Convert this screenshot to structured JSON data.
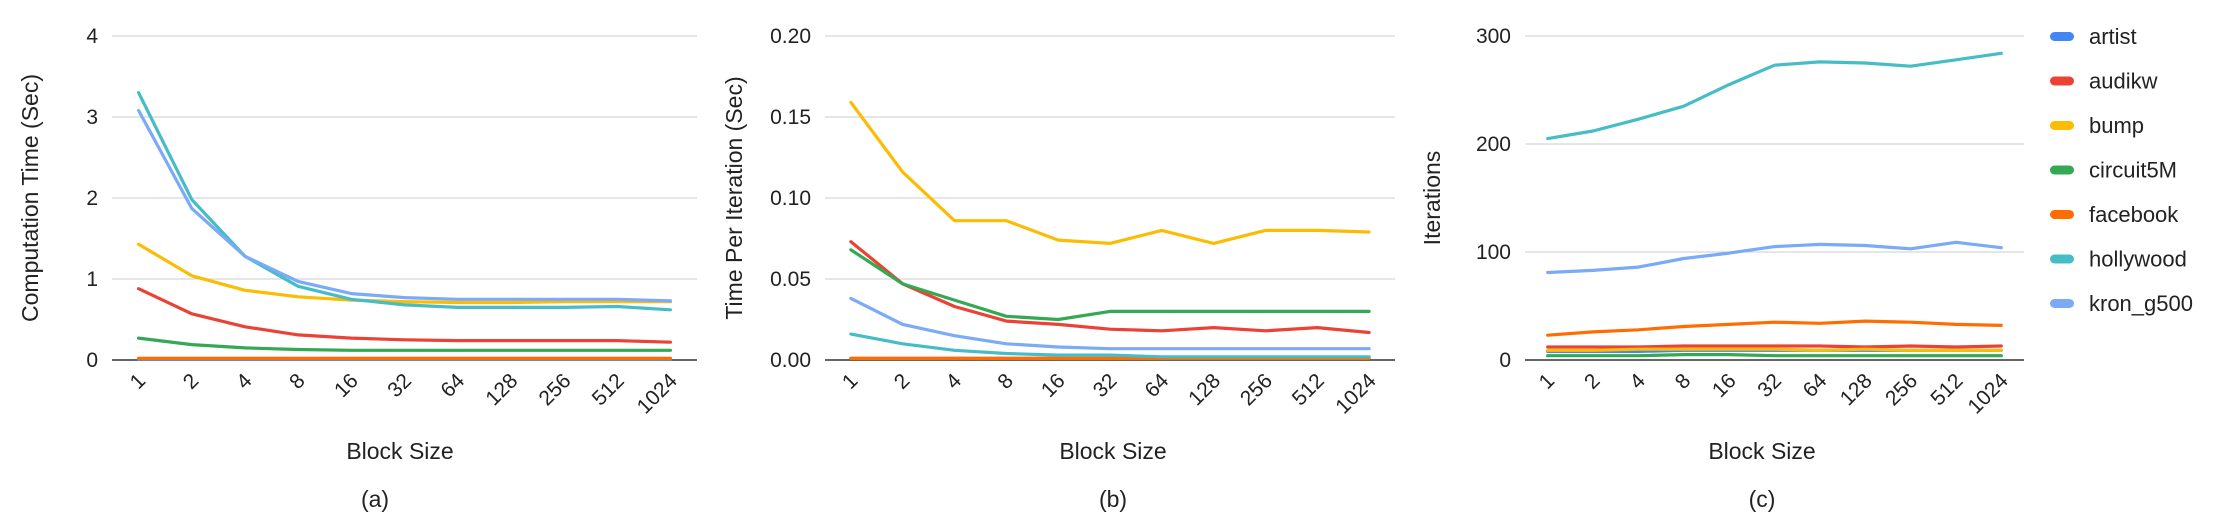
{
  "series_styles": [
    {
      "name": "artist",
      "color": "#4285f4"
    },
    {
      "name": "audikw",
      "color": "#ea4335"
    },
    {
      "name": "bump",
      "color": "#fbbc04"
    },
    {
      "name": "circuit5M",
      "color": "#34a853"
    },
    {
      "name": "facebook",
      "color": "#ff6d01"
    },
    {
      "name": "hollywood",
      "color": "#46bdc6"
    },
    {
      "name": "kron_g500",
      "color": "#7baaf7"
    }
  ],
  "chart_data": [
    {
      "type": "line",
      "caption": "(a)",
      "xlabel": "Block Size",
      "ylabel": "Computation Time (Sec)",
      "categories": [
        "1",
        "2",
        "4",
        "8",
        "16",
        "32",
        "64",
        "128",
        "256",
        "512",
        "1024"
      ],
      "ylim": [
        0,
        4
      ],
      "yticks": [
        "0",
        "1",
        "2",
        "3",
        "4"
      ],
      "ytick_values": [
        0,
        1,
        2,
        3,
        4
      ],
      "grid": true,
      "series": [
        {
          "name": "artist",
          "values": [
            0.01,
            0.01,
            0.01,
            0.01,
            0.01,
            0.01,
            0.01,
            0.01,
            0.01,
            0.01,
            0.01
          ]
        },
        {
          "name": "audikw",
          "values": [
            0.88,
            0.57,
            0.41,
            0.31,
            0.27,
            0.25,
            0.24,
            0.24,
            0.24,
            0.24,
            0.22
          ]
        },
        {
          "name": "bump",
          "values": [
            1.43,
            1.04,
            0.86,
            0.78,
            0.74,
            0.72,
            0.71,
            0.71,
            0.72,
            0.72,
            0.72
          ]
        },
        {
          "name": "circuit5M",
          "values": [
            0.27,
            0.19,
            0.15,
            0.13,
            0.12,
            0.12,
            0.12,
            0.12,
            0.12,
            0.12,
            0.12
          ]
        },
        {
          "name": "facebook",
          "values": [
            0.02,
            0.02,
            0.02,
            0.02,
            0.02,
            0.02,
            0.02,
            0.02,
            0.02,
            0.02,
            0.02
          ]
        },
        {
          "name": "hollywood",
          "values": [
            3.3,
            1.98,
            1.28,
            0.91,
            0.75,
            0.68,
            0.65,
            0.65,
            0.65,
            0.66,
            0.62
          ]
        },
        {
          "name": "kron_g500",
          "values": [
            3.08,
            1.87,
            1.28,
            0.97,
            0.82,
            0.77,
            0.75,
            0.75,
            0.75,
            0.75,
            0.73
          ]
        }
      ]
    },
    {
      "type": "line",
      "caption": "(b)",
      "xlabel": "Block Size",
      "ylabel": "Time Per Iteration (Sec)",
      "categories": [
        "1",
        "2",
        "4",
        "8",
        "16",
        "32",
        "64",
        "128",
        "256",
        "512",
        "1024"
      ],
      "ylim": [
        0,
        0.2
      ],
      "yticks": [
        "0.00",
        "0.05",
        "0.10",
        "0.15",
        "0.20"
      ],
      "ytick_values": [
        0,
        0.05,
        0.1,
        0.15,
        0.2
      ],
      "grid": true,
      "series": [
        {
          "name": "artist",
          "values": [
            0.001,
            0.001,
            0.001,
            0.001,
            0.001,
            0.001,
            0.001,
            0.001,
            0.001,
            0.001,
            0.001
          ]
        },
        {
          "name": "audikw",
          "values": [
            0.073,
            0.047,
            0.033,
            0.024,
            0.022,
            0.019,
            0.018,
            0.02,
            0.018,
            0.02,
            0.017
          ]
        },
        {
          "name": "bump",
          "values": [
            0.159,
            0.116,
            0.086,
            0.086,
            0.074,
            0.072,
            0.08,
            0.072,
            0.08,
            0.08,
            0.079
          ]
        },
        {
          "name": "circuit5M",
          "values": [
            0.068,
            0.047,
            0.037,
            0.027,
            0.025,
            0.03,
            0.03,
            0.03,
            0.03,
            0.03,
            0.03
          ]
        },
        {
          "name": "facebook",
          "values": [
            0.001,
            0.001,
            0.001,
            0.001,
            0.001,
            0.001,
            0.001,
            0.001,
            0.001,
            0.001,
            0.001
          ]
        },
        {
          "name": "hollywood",
          "values": [
            0.016,
            0.01,
            0.006,
            0.004,
            0.003,
            0.003,
            0.002,
            0.002,
            0.002,
            0.002,
            0.002
          ]
        },
        {
          "name": "kron_g500",
          "values": [
            0.038,
            0.022,
            0.015,
            0.01,
            0.008,
            0.007,
            0.007,
            0.007,
            0.007,
            0.007,
            0.007
          ]
        }
      ]
    },
    {
      "type": "line",
      "caption": "(c)",
      "xlabel": "Block Size",
      "ylabel": "Iterations",
      "categories": [
        "1",
        "2",
        "4",
        "8",
        "16",
        "32",
        "64",
        "128",
        "256",
        "512",
        "1024"
      ],
      "ylim": [
        0,
        300
      ],
      "yticks": [
        "0",
        "100",
        "200",
        "300"
      ],
      "ytick_values": [
        0,
        100,
        200,
        300
      ],
      "grid": true,
      "legend_position": "right",
      "series": [
        {
          "name": "artist",
          "values": [
            8,
            8,
            8,
            9,
            9,
            9,
            9,
            9,
            9,
            9,
            9
          ]
        },
        {
          "name": "audikw",
          "values": [
            12,
            12,
            12,
            13,
            13,
            13,
            13,
            12,
            13,
            12,
            13
          ]
        },
        {
          "name": "bump",
          "values": [
            9,
            9,
            10,
            10,
            10,
            10,
            9,
            10,
            9,
            9,
            9
          ]
        },
        {
          "name": "circuit5M",
          "values": [
            4,
            4,
            4,
            5,
            5,
            4,
            4,
            4,
            4,
            4,
            4
          ]
        },
        {
          "name": "facebook",
          "values": [
            23,
            26,
            28,
            31,
            33,
            35,
            34,
            36,
            35,
            33,
            32
          ]
        },
        {
          "name": "hollywood",
          "values": [
            205,
            212,
            223,
            235,
            255,
            273,
            276,
            275,
            272,
            278,
            284
          ]
        },
        {
          "name": "kron_g500",
          "values": [
            81,
            83,
            86,
            94,
            99,
            105,
            107,
            106,
            103,
            109,
            104
          ]
        }
      ]
    }
  ],
  "legend": [
    "artist",
    "audikw",
    "bump",
    "circuit5M",
    "facebook",
    "hollywood",
    "kron_g500"
  ]
}
